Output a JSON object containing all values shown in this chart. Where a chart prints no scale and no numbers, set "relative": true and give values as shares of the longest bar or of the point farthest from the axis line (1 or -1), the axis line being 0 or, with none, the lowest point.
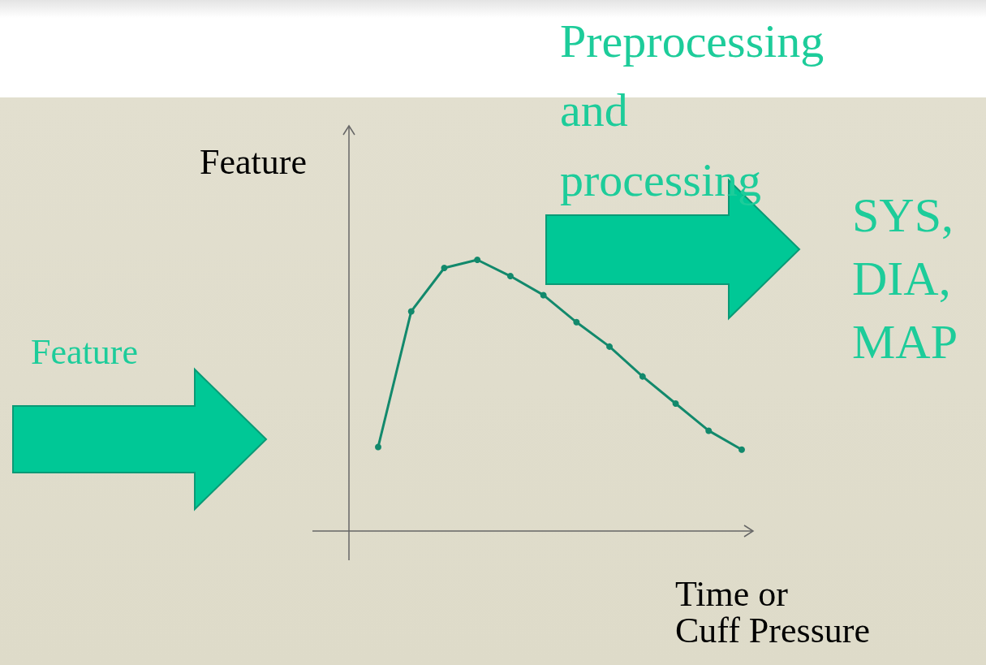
{
  "chart_data": {
    "type": "line",
    "relative": true,
    "ylabel": "Feature",
    "xlabel": "Time or\nCuff Pressure",
    "annotations": [
      "Preprocessing and processing",
      "SYS, DIA, MAP",
      "Feature"
    ],
    "categories": [
      null,
      null,
      null,
      null,
      null,
      null,
      null,
      null,
      null,
      null,
      null,
      null
    ],
    "series": [
      {
        "color": "#12896c",
        "values": [
          0.31,
          0.81,
          0.97,
          1.0,
          0.94,
          0.87,
          0.77,
          0.68,
          0.57,
          0.47,
          0.37,
          0.3
        ]
      }
    ],
    "marker": "circle",
    "grid": false
  }
}
